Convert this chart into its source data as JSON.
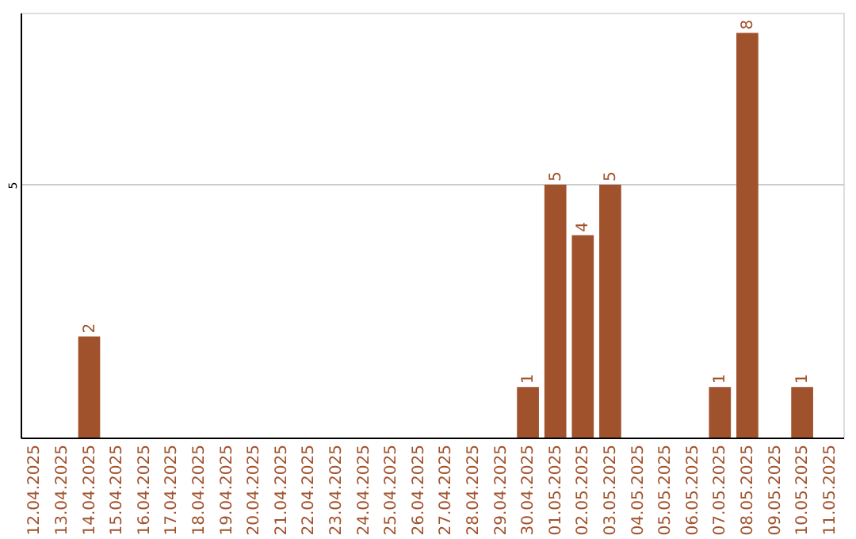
{
  "chart_data": {
    "type": "bar",
    "categories": [
      "12.04.2025",
      "13.04.2025",
      "14.04.2025",
      "15.04.2025",
      "16.04.2025",
      "17.04.2025",
      "18.04.2025",
      "19.04.2025",
      "20.04.2025",
      "21.04.2025",
      "22.04.2025",
      "23.04.2025",
      "24.04.2025",
      "25.04.2025",
      "26.04.2025",
      "27.04.2025",
      "28.04.2025",
      "29.04.2025",
      "30.04.2025",
      "01.05.2025",
      "02.05.2025",
      "03.05.2025",
      "04.05.2025",
      "05.05.2025",
      "06.05.2025",
      "07.05.2025",
      "08.05.2025",
      "09.05.2025",
      "10.05.2025",
      "11.05.2025"
    ],
    "values": [
      0,
      0,
      2,
      0,
      0,
      0,
      0,
      0,
      0,
      0,
      0,
      0,
      0,
      0,
      0,
      0,
      0,
      0,
      1,
      5,
      4,
      5,
      0,
      0,
      0,
      1,
      8,
      0,
      1,
      0
    ],
    "value_labels": [
      null,
      null,
      "2",
      null,
      null,
      null,
      null,
      null,
      null,
      null,
      null,
      null,
      null,
      null,
      null,
      null,
      null,
      null,
      "1",
      "5",
      "4",
      "5",
      null,
      null,
      null,
      "1",
      "8",
      null,
      "1",
      null
    ],
    "color": "#a0522d",
    "ylim": [
      0,
      8.4
    ],
    "yticks": [
      5
    ],
    "grid": "y"
  }
}
